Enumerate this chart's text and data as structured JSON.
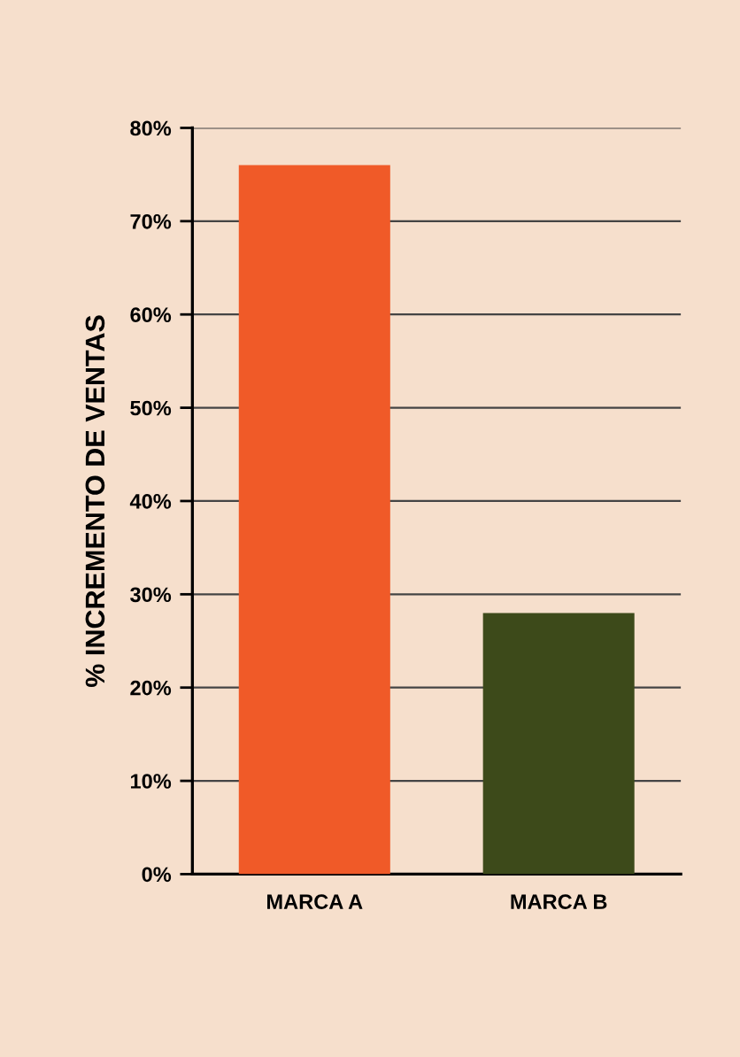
{
  "chart_data": {
    "type": "bar",
    "ylabel": "% INCREMENTO DE VENTAS",
    "categories": [
      "MARCA A",
      "MARCA B"
    ],
    "values": [
      76,
      28
    ],
    "colors": [
      "#f05a28",
      "#3d4a1a"
    ],
    "ylim": [
      0,
      80
    ],
    "yticks": [
      {
        "value": 0,
        "label": "0%"
      },
      {
        "value": 10,
        "label": "10%"
      },
      {
        "value": 20,
        "label": "20%"
      },
      {
        "value": 30,
        "label": "30%"
      },
      {
        "value": 40,
        "label": "40%"
      },
      {
        "value": 50,
        "label": "50%"
      },
      {
        "value": 60,
        "label": "60%"
      },
      {
        "value": 70,
        "label": "70%"
      },
      {
        "value": 80,
        "label": "80%"
      }
    ],
    "grid": "y",
    "legend": false
  }
}
